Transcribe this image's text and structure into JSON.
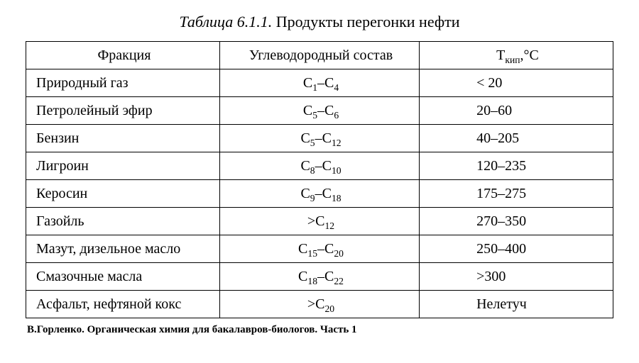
{
  "title_label": "Таблица 6.1.1.",
  "title_text": "Продукты перегонки нефти",
  "columns": {
    "c1": "Фракция",
    "c2": "Углеводородный состав",
    "c3_pre": "Т",
    "c3_sub": "кип",
    "c3_post": ",°С"
  },
  "rows": [
    {
      "frac": "Природный газ",
      "comp_a_sub": "1",
      "comp_sep": "–",
      "comp_b_sub": "4",
      "prefix": "",
      "temp": "< 20"
    },
    {
      "frac": "Петролейный эфир",
      "comp_a_sub": "5",
      "comp_sep": "–",
      "comp_b_sub": "6",
      "prefix": "",
      "temp": "20–60"
    },
    {
      "frac": "Бензин",
      "comp_a_sub": "5",
      "comp_sep": "–",
      "comp_b_sub": "12",
      "prefix": "",
      "temp": "40–205"
    },
    {
      "frac": "Лигроин",
      "comp_a_sub": "8",
      "comp_sep": "–",
      "comp_b_sub": "10",
      "prefix": "",
      "temp": "120–235"
    },
    {
      "frac": "Керосин",
      "comp_a_sub": "9",
      "comp_sep": "–",
      "comp_b_sub": "18",
      "prefix": "",
      "temp": "175–275"
    },
    {
      "frac": "Газойль",
      "comp_a_sub": "12",
      "comp_sep": "",
      "comp_b_sub": "",
      "prefix": ">",
      "temp": "270–350"
    },
    {
      "frac": "Мазут, дизельное масло",
      "comp_a_sub": "15",
      "comp_sep": "–",
      "comp_b_sub": "20",
      "prefix": "",
      "temp": "250–400"
    },
    {
      "frac": "Смазочные масла",
      "comp_a_sub": "18",
      "comp_sep": "–",
      "comp_b_sub": "22",
      "prefix": "",
      "temp": ">300"
    },
    {
      "frac": "Асфальт, нефтяной кокс",
      "comp_a_sub": "20",
      "comp_sep": "",
      "comp_b_sub": "",
      "prefix": ">",
      "temp": "Нелетуч"
    }
  ],
  "chem_letter": "С",
  "footer": "В.Горленко. Органическая химия для бакалавров-биологов. Часть 1"
}
